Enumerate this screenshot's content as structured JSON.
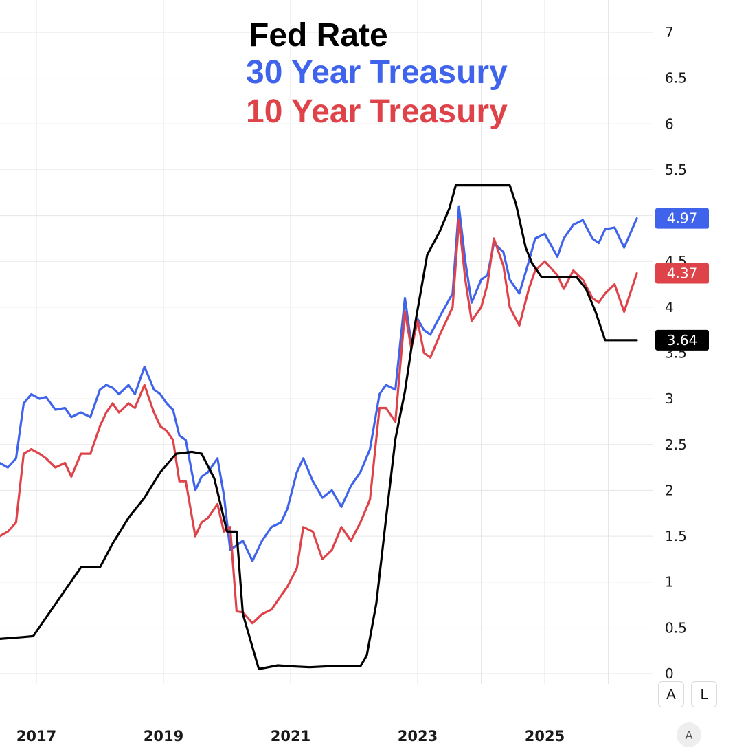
{
  "chart_data": {
    "type": "line",
    "title": "",
    "xlabel": "",
    "ylabel": "",
    "x_tick_labels": [
      "2017",
      "2019",
      "2021",
      "2023",
      "2025"
    ],
    "y_ticks": [
      0,
      0.5,
      1,
      1.5,
      2,
      2.5,
      3,
      3.5,
      4,
      4.5,
      5,
      5.5,
      6,
      6.5,
      7
    ],
    "y_tick_labels": [
      "0",
      "0.5",
      "1",
      "1.5",
      "2",
      "2.5",
      "3",
      "3.5",
      "4",
      "4.5",
      "",
      "5.5",
      "6",
      "6.5",
      "7"
    ],
    "ylim": [
      0,
      7
    ],
    "xlim": [
      2016.42,
      2026.58
    ],
    "grid": true,
    "legend_position": "top-center",
    "series": [
      {
        "name": "Fed Rate",
        "color": "#000000",
        "last_value_label": "3.64",
        "x": [
          2016.42,
          2016.8,
          2016.95,
          2017.2,
          2017.45,
          2017.7,
          2018.0,
          2018.2,
          2018.45,
          2018.7,
          2018.95,
          2019.2,
          2019.45,
          2019.6,
          2019.8,
          2020.0,
          2020.15,
          2020.25,
          2020.5,
          2020.8,
          2021.0,
          2021.3,
          2021.6,
          2021.85,
          2022.1,
          2022.2,
          2022.35,
          2022.5,
          2022.65,
          2022.8,
          2022.95,
          2023.15,
          2023.35,
          2023.5,
          2023.6,
          2024.45,
          2024.55,
          2024.7,
          2024.8,
          2024.95,
          2025.1,
          2025.5,
          2025.65,
          2025.8,
          2025.95,
          2026.45
        ],
        "y": [
          0.38,
          0.4,
          0.41,
          0.66,
          0.91,
          1.16,
          1.16,
          1.42,
          1.7,
          1.92,
          2.2,
          2.4,
          2.42,
          2.4,
          2.13,
          1.55,
          1.55,
          0.65,
          0.05,
          0.09,
          0.08,
          0.07,
          0.08,
          0.08,
          0.08,
          0.2,
          0.77,
          1.68,
          2.56,
          3.08,
          3.78,
          4.57,
          4.83,
          5.08,
          5.33,
          5.33,
          5.12,
          4.65,
          4.48,
          4.33,
          4.33,
          4.33,
          4.2,
          3.95,
          3.64,
          3.64
        ]
      },
      {
        "name": "30 Year Treasury",
        "color": "#3f63eb",
        "last_value_label": "4.97",
        "x": [
          2016.42,
          2016.55,
          2016.68,
          2016.8,
          2016.92,
          2017.05,
          2017.15,
          2017.3,
          2017.45,
          2017.55,
          2017.7,
          2017.85,
          2018.0,
          2018.1,
          2018.2,
          2018.3,
          2018.45,
          2018.55,
          2018.7,
          2018.85,
          2018.95,
          2019.05,
          2019.15,
          2019.25,
          2019.35,
          2019.5,
          2019.6,
          2019.7,
          2019.85,
          2019.95,
          2020.05,
          2020.15,
          2020.25,
          2020.4,
          2020.55,
          2020.7,
          2020.85,
          2020.95,
          2021.1,
          2021.2,
          2021.35,
          2021.5,
          2021.65,
          2021.8,
          2021.95,
          2022.1,
          2022.25,
          2022.4,
          2022.5,
          2022.65,
          2022.8,
          2022.9,
          2023.0,
          2023.1,
          2023.2,
          2023.35,
          2023.55,
          2023.65,
          2023.75,
          2023.85,
          2024.0,
          2024.1,
          2024.2,
          2024.35,
          2024.45,
          2024.6,
          2024.75,
          2024.85,
          2025.0,
          2025.2,
          2025.3,
          2025.45,
          2025.6,
          2025.75,
          2025.85,
          2025.95,
          2026.1,
          2026.25,
          2026.45
        ],
        "y": [
          2.3,
          2.25,
          2.35,
          2.95,
          3.05,
          3.0,
          3.02,
          2.88,
          2.9,
          2.8,
          2.85,
          2.8,
          3.1,
          3.15,
          3.12,
          3.05,
          3.15,
          3.05,
          3.35,
          3.1,
          3.05,
          2.95,
          2.88,
          2.6,
          2.55,
          2.0,
          2.15,
          2.2,
          2.35,
          1.95,
          1.35,
          1.4,
          1.45,
          1.23,
          1.45,
          1.6,
          1.65,
          1.8,
          2.2,
          2.35,
          2.1,
          1.92,
          2.0,
          1.82,
          2.05,
          2.2,
          2.45,
          3.05,
          3.15,
          3.1,
          4.1,
          3.6,
          3.87,
          3.75,
          3.7,
          3.9,
          4.15,
          5.1,
          4.5,
          4.05,
          4.3,
          4.35,
          4.7,
          4.6,
          4.3,
          4.15,
          4.5,
          4.75,
          4.8,
          4.55,
          4.75,
          4.9,
          4.95,
          4.75,
          4.7,
          4.85,
          4.87,
          4.65,
          4.97
        ]
      },
      {
        "name": "10 Year Treasury",
        "color": "#df434a",
        "last_value_label": "4.37",
        "x": [
          2016.42,
          2016.55,
          2016.68,
          2016.8,
          2016.92,
          2017.05,
          2017.15,
          2017.3,
          2017.45,
          2017.55,
          2017.7,
          2017.85,
          2018.0,
          2018.1,
          2018.2,
          2018.3,
          2018.45,
          2018.55,
          2018.7,
          2018.85,
          2018.95,
          2019.05,
          2019.15,
          2019.25,
          2019.35,
          2019.5,
          2019.6,
          2019.7,
          2019.85,
          2019.95,
          2020.05,
          2020.15,
          2020.25,
          2020.4,
          2020.55,
          2020.7,
          2020.85,
          2020.95,
          2021.1,
          2021.2,
          2021.35,
          2021.5,
          2021.65,
          2021.8,
          2021.95,
          2022.1,
          2022.25,
          2022.4,
          2022.5,
          2022.65,
          2022.8,
          2022.9,
          2023.0,
          2023.1,
          2023.2,
          2023.35,
          2023.55,
          2023.65,
          2023.75,
          2023.85,
          2024.0,
          2024.1,
          2024.2,
          2024.35,
          2024.45,
          2024.6,
          2024.75,
          2024.85,
          2025.0,
          2025.2,
          2025.3,
          2025.45,
          2025.6,
          2025.75,
          2025.85,
          2025.95,
          2026.1,
          2026.25,
          2026.45
        ],
        "y": [
          1.5,
          1.55,
          1.65,
          2.4,
          2.45,
          2.4,
          2.35,
          2.25,
          2.3,
          2.15,
          2.4,
          2.4,
          2.7,
          2.85,
          2.95,
          2.85,
          2.95,
          2.9,
          3.15,
          2.85,
          2.7,
          2.65,
          2.55,
          2.1,
          2.1,
          1.5,
          1.65,
          1.7,
          1.85,
          1.55,
          1.6,
          0.68,
          0.67,
          0.55,
          0.65,
          0.7,
          0.85,
          0.95,
          1.15,
          1.6,
          1.55,
          1.25,
          1.35,
          1.6,
          1.45,
          1.65,
          1.9,
          2.9,
          2.9,
          2.75,
          3.95,
          3.55,
          3.85,
          3.5,
          3.45,
          3.7,
          4.0,
          4.95,
          4.3,
          3.85,
          4.0,
          4.25,
          4.75,
          4.45,
          4.0,
          3.8,
          4.2,
          4.4,
          4.5,
          4.35,
          4.2,
          4.4,
          4.3,
          4.1,
          4.05,
          4.15,
          4.25,
          3.95,
          4.37
        ]
      }
    ]
  },
  "toolbar": {
    "auto_label": "A",
    "log_label": "L",
    "settings_label": "A"
  }
}
